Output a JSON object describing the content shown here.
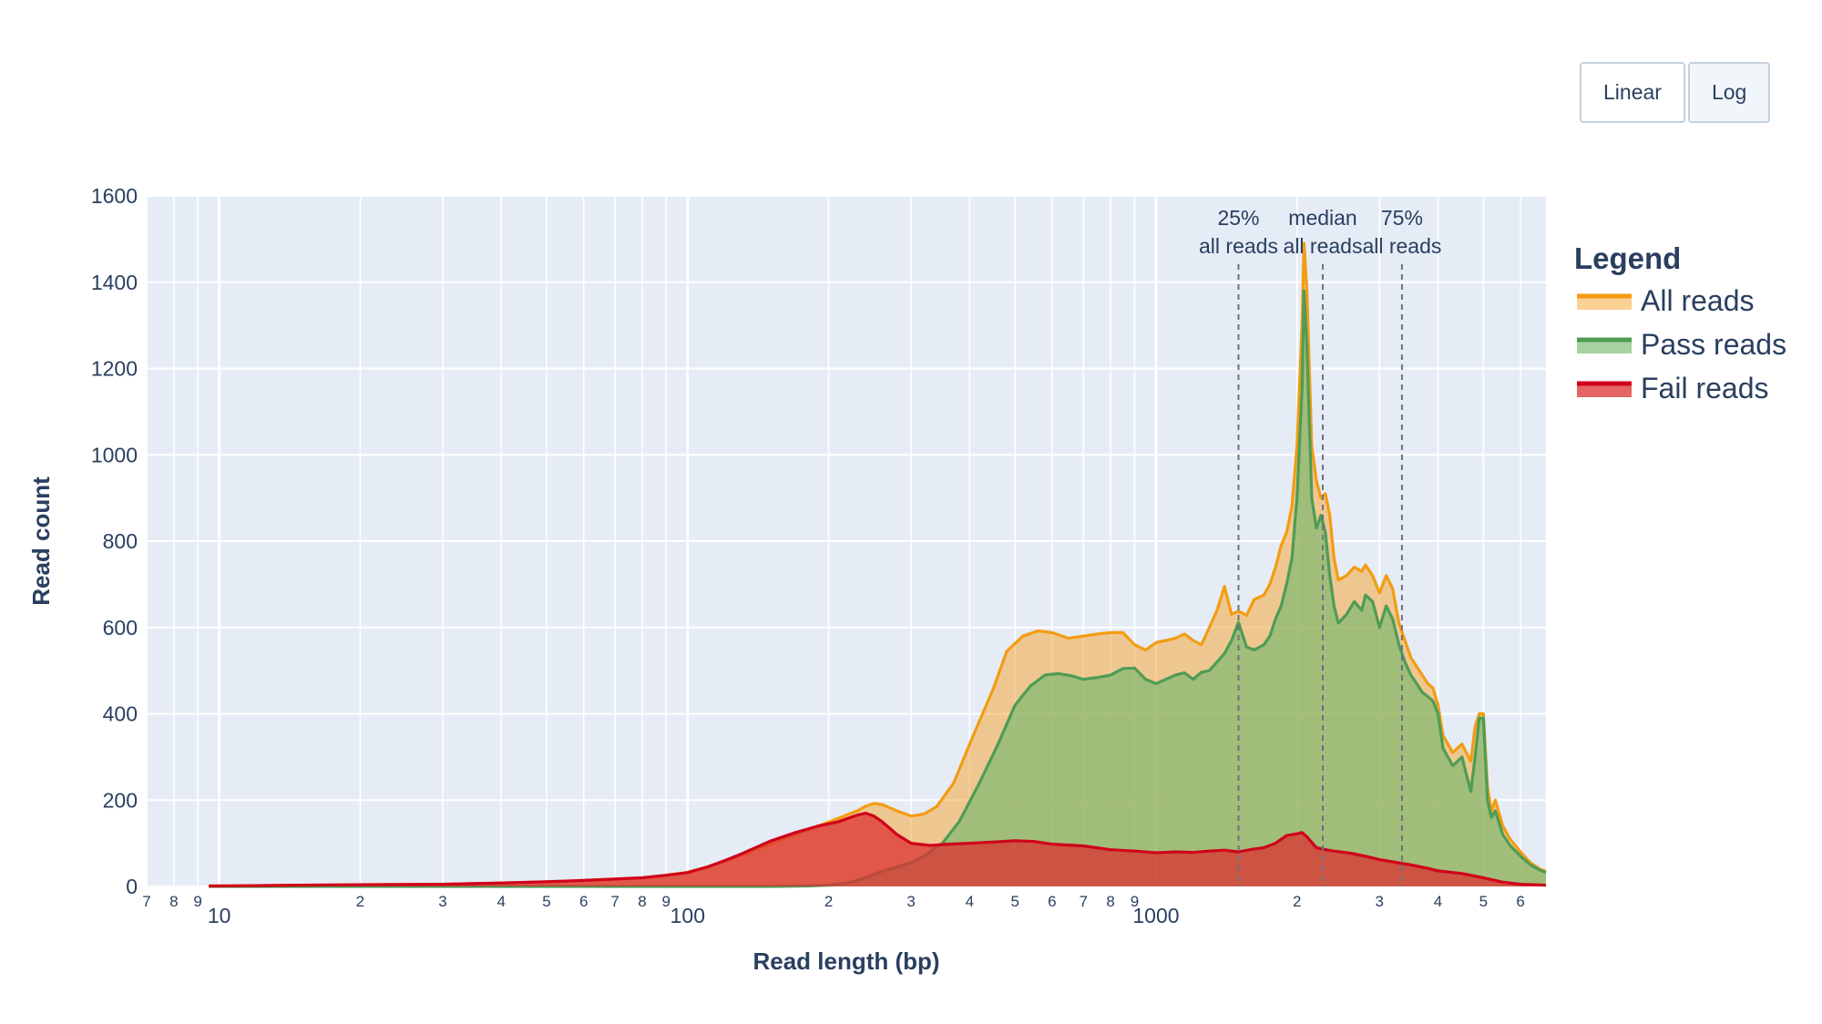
{
  "controls": {
    "linear_label": "Linear",
    "log_label": "Log",
    "active": "log"
  },
  "chart_data": {
    "type": "area",
    "title": "",
    "xlabel": "Read length (bp)",
    "ylabel": "Read count",
    "x_scale": "log",
    "xlim": [
      7,
      6800
    ],
    "ylim": [
      0,
      1600
    ],
    "grid": true,
    "y_ticks": [
      0,
      200,
      400,
      600,
      800,
      1000,
      1200,
      1400,
      1600
    ],
    "x_major_ticks": [
      10,
      100,
      1000
    ],
    "x_major_tick_labels": [
      "10",
      "100",
      "1000"
    ],
    "x_minor_ticks": [
      7,
      8,
      9,
      20,
      30,
      40,
      50,
      60,
      70,
      80,
      90,
      200,
      300,
      400,
      500,
      600,
      700,
      800,
      900,
      2000,
      3000,
      4000,
      5000,
      6000
    ],
    "x_minor_tick_labels": [
      "7",
      "8",
      "9",
      "2",
      "3",
      "4",
      "5",
      "6",
      "7",
      "8",
      "9",
      "2",
      "3",
      "4",
      "5",
      "6",
      "7",
      "8",
      "9",
      "2",
      "3",
      "4",
      "5",
      "6"
    ],
    "legend_title": "Legend",
    "legend_position": "right",
    "series": [
      {
        "name": "All reads",
        "color": "#f39c12",
        "fill": "rgba(245,170,60,0.55)",
        "points": [
          [
            9.5,
            1
          ],
          [
            12,
            2
          ],
          [
            15,
            3
          ],
          [
            20,
            4
          ],
          [
            30,
            5
          ],
          [
            40,
            8
          ],
          [
            50,
            11
          ],
          [
            60,
            14
          ],
          [
            70,
            17
          ],
          [
            80,
            20
          ],
          [
            90,
            26
          ],
          [
            100,
            33
          ],
          [
            110,
            45
          ],
          [
            120,
            58
          ],
          [
            130,
            72
          ],
          [
            150,
            98
          ],
          [
            170,
            120
          ],
          [
            190,
            140
          ],
          [
            210,
            158
          ],
          [
            230,
            175
          ],
          [
            240,
            186
          ],
          [
            250,
            192
          ],
          [
            260,
            190
          ],
          [
            280,
            175
          ],
          [
            300,
            163
          ],
          [
            320,
            168
          ],
          [
            340,
            185
          ],
          [
            370,
            240
          ],
          [
            400,
            330
          ],
          [
            450,
            460
          ],
          [
            480,
            545
          ],
          [
            520,
            580
          ],
          [
            560,
            592
          ],
          [
            600,
            588
          ],
          [
            650,
            575
          ],
          [
            700,
            580
          ],
          [
            750,
            585
          ],
          [
            800,
            588
          ],
          [
            850,
            588
          ],
          [
            900,
            560
          ],
          [
            950,
            548
          ],
          [
            1000,
            565
          ],
          [
            1050,
            570
          ],
          [
            1100,
            575
          ],
          [
            1150,
            585
          ],
          [
            1200,
            570
          ],
          [
            1250,
            560
          ],
          [
            1300,
            600
          ],
          [
            1350,
            640
          ],
          [
            1400,
            695
          ],
          [
            1450,
            630
          ],
          [
            1500,
            638
          ],
          [
            1560,
            628
          ],
          [
            1620,
            665
          ],
          [
            1700,
            675
          ],
          [
            1750,
            700
          ],
          [
            1800,
            740
          ],
          [
            1850,
            790
          ],
          [
            1900,
            820
          ],
          [
            1950,
            880
          ],
          [
            2000,
            1020
          ],
          [
            2050,
            1300
          ],
          [
            2070,
            1490
          ],
          [
            2100,
            1380
          ],
          [
            2150,
            1020
          ],
          [
            2200,
            940
          ],
          [
            2250,
            900
          ],
          [
            2300,
            910
          ],
          [
            2350,
            860
          ],
          [
            2400,
            760
          ],
          [
            2450,
            710
          ],
          [
            2550,
            720
          ],
          [
            2650,
            740
          ],
          [
            2750,
            730
          ],
          [
            2800,
            745
          ],
          [
            2900,
            720
          ],
          [
            3000,
            680
          ],
          [
            3100,
            720
          ],
          [
            3200,
            690
          ],
          [
            3300,
            610
          ],
          [
            3400,
            570
          ],
          [
            3500,
            530
          ],
          [
            3600,
            510
          ],
          [
            3700,
            490
          ],
          [
            3800,
            470
          ],
          [
            3900,
            460
          ],
          [
            4000,
            420
          ],
          [
            4100,
            350
          ],
          [
            4300,
            310
          ],
          [
            4500,
            330
          ],
          [
            4700,
            290
          ],
          [
            4800,
            370
          ],
          [
            4900,
            400
          ],
          [
            5000,
            400
          ],
          [
            5100,
            230
          ],
          [
            5200,
            175
          ],
          [
            5300,
            200
          ],
          [
            5500,
            140
          ],
          [
            5700,
            110
          ],
          [
            6000,
            80
          ],
          [
            6300,
            55
          ],
          [
            6600,
            40
          ],
          [
            6800,
            35
          ]
        ]
      },
      {
        "name": "Pass reads",
        "color": "#4e9c55",
        "fill": "rgba(120,185,110,0.65)",
        "points": [
          [
            9.5,
            0
          ],
          [
            100,
            0
          ],
          [
            150,
            0
          ],
          [
            180,
            1
          ],
          [
            200,
            3
          ],
          [
            220,
            8
          ],
          [
            240,
            20
          ],
          [
            260,
            35
          ],
          [
            280,
            45
          ],
          [
            300,
            55
          ],
          [
            320,
            70
          ],
          [
            350,
            100
          ],
          [
            380,
            150
          ],
          [
            420,
            240
          ],
          [
            460,
            330
          ],
          [
            500,
            420
          ],
          [
            540,
            465
          ],
          [
            580,
            490
          ],
          [
            620,
            493
          ],
          [
            660,
            488
          ],
          [
            700,
            480
          ],
          [
            750,
            484
          ],
          [
            800,
            490
          ],
          [
            850,
            505
          ],
          [
            900,
            506
          ],
          [
            950,
            480
          ],
          [
            1000,
            470
          ],
          [
            1050,
            480
          ],
          [
            1100,
            490
          ],
          [
            1150,
            495
          ],
          [
            1200,
            480
          ],
          [
            1250,
            496
          ],
          [
            1300,
            500
          ],
          [
            1350,
            520
          ],
          [
            1400,
            540
          ],
          [
            1450,
            570
          ],
          [
            1500,
            612
          ],
          [
            1560,
            555
          ],
          [
            1620,
            548
          ],
          [
            1700,
            560
          ],
          [
            1750,
            580
          ],
          [
            1800,
            620
          ],
          [
            1850,
            650
          ],
          [
            1900,
            700
          ],
          [
            1950,
            760
          ],
          [
            2000,
            900
          ],
          [
            2050,
            1150
          ],
          [
            2070,
            1380
          ],
          [
            2100,
            1250
          ],
          [
            2150,
            900
          ],
          [
            2200,
            830
          ],
          [
            2250,
            860
          ],
          [
            2300,
            820
          ],
          [
            2350,
            720
          ],
          [
            2400,
            650
          ],
          [
            2450,
            610
          ],
          [
            2550,
            630
          ],
          [
            2650,
            660
          ],
          [
            2750,
            640
          ],
          [
            2800,
            675
          ],
          [
            2900,
            660
          ],
          [
            3000,
            600
          ],
          [
            3100,
            650
          ],
          [
            3200,
            620
          ],
          [
            3300,
            560
          ],
          [
            3400,
            520
          ],
          [
            3500,
            490
          ],
          [
            3600,
            470
          ],
          [
            3700,
            450
          ],
          [
            3800,
            440
          ],
          [
            3900,
            430
          ],
          [
            4000,
            400
          ],
          [
            4100,
            320
          ],
          [
            4300,
            280
          ],
          [
            4500,
            300
          ],
          [
            4700,
            220
          ],
          [
            4800,
            300
          ],
          [
            4900,
            390
          ],
          [
            5000,
            390
          ],
          [
            5100,
            200
          ],
          [
            5200,
            160
          ],
          [
            5300,
            175
          ],
          [
            5500,
            120
          ],
          [
            5700,
            95
          ],
          [
            6000,
            70
          ],
          [
            6300,
            50
          ],
          [
            6600,
            38
          ],
          [
            6800,
            32
          ]
        ]
      },
      {
        "name": "Fail reads",
        "color": "#d0021b",
        "fill": "rgba(220,50,50,0.75)",
        "points": [
          [
            9.5,
            1
          ],
          [
            12,
            2
          ],
          [
            15,
            3
          ],
          [
            20,
            4
          ],
          [
            30,
            5
          ],
          [
            40,
            8
          ],
          [
            50,
            11
          ],
          [
            60,
            14
          ],
          [
            70,
            17
          ],
          [
            80,
            20
          ],
          [
            90,
            26
          ],
          [
            100,
            32
          ],
          [
            110,
            45
          ],
          [
            120,
            60
          ],
          [
            130,
            75
          ],
          [
            150,
            105
          ],
          [
            170,
            125
          ],
          [
            190,
            140
          ],
          [
            210,
            150
          ],
          [
            230,
            165
          ],
          [
            240,
            170
          ],
          [
            250,
            163
          ],
          [
            260,
            150
          ],
          [
            280,
            120
          ],
          [
            300,
            100
          ],
          [
            330,
            95
          ],
          [
            360,
            98
          ],
          [
            400,
            100
          ],
          [
            450,
            103
          ],
          [
            500,
            106
          ],
          [
            550,
            104
          ],
          [
            600,
            98
          ],
          [
            700,
            94
          ],
          [
            800,
            85
          ],
          [
            900,
            82
          ],
          [
            1000,
            78
          ],
          [
            1100,
            80
          ],
          [
            1200,
            79
          ],
          [
            1300,
            82
          ],
          [
            1400,
            84
          ],
          [
            1500,
            80
          ],
          [
            1600,
            86
          ],
          [
            1700,
            90
          ],
          [
            1800,
            100
          ],
          [
            1900,
            118
          ],
          [
            2000,
            122
          ],
          [
            2050,
            125
          ],
          [
            2100,
            115
          ],
          [
            2200,
            90
          ],
          [
            2300,
            85
          ],
          [
            2400,
            82
          ],
          [
            2600,
            77
          ],
          [
            2800,
            70
          ],
          [
            3000,
            62
          ],
          [
            3200,
            57
          ],
          [
            3500,
            50
          ],
          [
            3800,
            42
          ],
          [
            4000,
            36
          ],
          [
            4500,
            30
          ],
          [
            5000,
            20
          ],
          [
            5500,
            10
          ],
          [
            6000,
            5
          ],
          [
            6800,
            3
          ]
        ]
      }
    ],
    "annotations": [
      {
        "x": 1500,
        "line1": "25%",
        "line2": "all reads"
      },
      {
        "x": 2270,
        "line1": "median",
        "line2": "all reads"
      },
      {
        "x": 3350,
        "line1": "75%",
        "line2": "all reads"
      }
    ]
  }
}
